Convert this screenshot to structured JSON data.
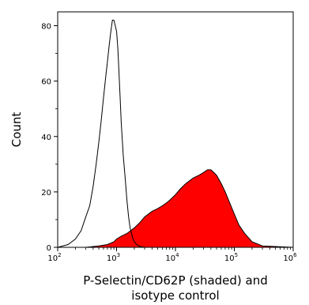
{
  "chart_data": {
    "type": "area",
    "title": "",
    "xlabel_lines": [
      "P-Selectin/CD62P (shaded) and",
      "isotype control"
    ],
    "ylabel": "Count",
    "x_scale": "log",
    "xlim": [
      100,
      1000000
    ],
    "ylim": [
      0,
      85
    ],
    "x_ticks": [
      {
        "value": 100,
        "base": "10",
        "exp": "2"
      },
      {
        "value": 1000,
        "base": "10",
        "exp": "3"
      },
      {
        "value": 10000,
        "base": "10",
        "exp": "4"
      },
      {
        "value": 100000,
        "base": "10",
        "exp": "5"
      },
      {
        "value": 1000000,
        "base": "10",
        "exp": "6"
      }
    ],
    "y_ticks": [
      {
        "value": 0,
        "label": "0"
      },
      {
        "value": 20,
        "label": "20"
      },
      {
        "value": 40,
        "label": "40"
      },
      {
        "value": 60,
        "label": "60"
      },
      {
        "value": 80,
        "label": "80"
      }
    ],
    "grid": false,
    "series": [
      {
        "style": "outline",
        "color": "#000000",
        "x": [
          100,
          150,
          200,
          250,
          300,
          350,
          400,
          450,
          500,
          550,
          600,
          650,
          700,
          750,
          800,
          850,
          900,
          950,
          1000,
          1050,
          1100,
          1150,
          1200,
          1300,
          1400,
          1500,
          1600,
          1700,
          1800,
          1900,
          2000,
          2200,
          2400,
          2600,
          3000,
          4000,
          6000,
          10000,
          100000,
          1000000
        ],
        "y": [
          0,
          1,
          3,
          6,
          11,
          15,
          22,
          30,
          38,
          46,
          54,
          61,
          67,
          73,
          78,
          82,
          82,
          80,
          78,
          72,
          63,
          54,
          45,
          33,
          25,
          17,
          11,
          7,
          5,
          3,
          2,
          1,
          0.5,
          0.2,
          0,
          0,
          0,
          0,
          0,
          0
        ]
      },
      {
        "style": "filled",
        "color": "#ff0000",
        "x": [
          100,
          300,
          500,
          700,
          900,
          1000,
          1200,
          1500,
          2000,
          2500,
          3000,
          4000,
          5000,
          6000,
          7000,
          8000,
          10000,
          12000,
          15000,
          20000,
          25000,
          30000,
          35000,
          40000,
          45000,
          50000,
          60000,
          70000,
          80000,
          100000,
          120000,
          150000,
          200000,
          300000,
          1000000
        ],
        "y": [
          0,
          0,
          0.5,
          1,
          2,
          3,
          4,
          5,
          7,
          9,
          11,
          13,
          14,
          15,
          16,
          17,
          19,
          21,
          23,
          25,
          26,
          27,
          28,
          28,
          27,
          26,
          23,
          20,
          17,
          12,
          8,
          5,
          2,
          0.5,
          0
        ]
      }
    ]
  }
}
